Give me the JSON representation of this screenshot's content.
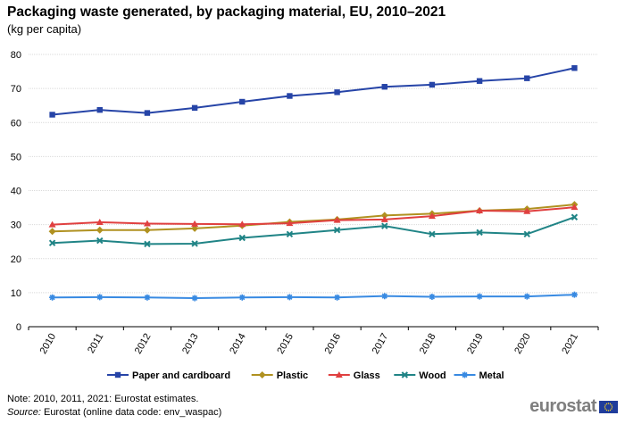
{
  "header": {
    "title": "Packaging waste generated, by packaging material, EU, 2010–2021",
    "subtitle": "(kg per capita)"
  },
  "footer": {
    "note": "Note: 2010, 2011, 2021: Eurostat estimates.",
    "source_label": "Source:",
    "source_text": " Eurostat (online data code: env_waspac)",
    "logo_text": "eurostat"
  },
  "chart_data": {
    "type": "line",
    "x": [
      "2010",
      "2011",
      "2012",
      "2013",
      "2014",
      "2015",
      "2016",
      "2017",
      "2018",
      "2019",
      "2020",
      "2021"
    ],
    "ylim": [
      0,
      80
    ],
    "yticks": [
      0,
      10,
      20,
      30,
      40,
      50,
      60,
      70,
      80
    ],
    "grid": true,
    "legend_position": "bottom",
    "series": [
      {
        "name": "Paper and cardboard",
        "color": "#2644A7",
        "marker": "square",
        "values": [
          62.3,
          63.7,
          62.8,
          64.3,
          66.1,
          67.8,
          68.9,
          70.5,
          71.1,
          72.2,
          73.0,
          76.0
        ]
      },
      {
        "name": "Plastic",
        "color": "#B09120",
        "marker": "diamond",
        "values": [
          28.0,
          28.4,
          28.4,
          28.9,
          29.7,
          30.8,
          31.5,
          32.7,
          33.2,
          34.1,
          34.6,
          35.9
        ]
      },
      {
        "name": "Glass",
        "color": "#E04040",
        "marker": "triangle",
        "values": [
          30.0,
          30.7,
          30.3,
          30.2,
          30.1,
          30.4,
          31.3,
          31.5,
          32.5,
          34.1,
          33.9,
          35.1
        ]
      },
      {
        "name": "Wood",
        "color": "#208486",
        "marker": "x",
        "values": [
          24.6,
          25.3,
          24.3,
          24.4,
          26.1,
          27.2,
          28.4,
          29.6,
          27.2,
          27.7,
          27.2,
          32.2
        ]
      },
      {
        "name": "Metal",
        "color": "#388AE2",
        "marker": "star",
        "values": [
          8.6,
          8.7,
          8.6,
          8.4,
          8.6,
          8.7,
          8.6,
          9.0,
          8.8,
          8.9,
          8.9,
          9.4
        ]
      }
    ]
  }
}
